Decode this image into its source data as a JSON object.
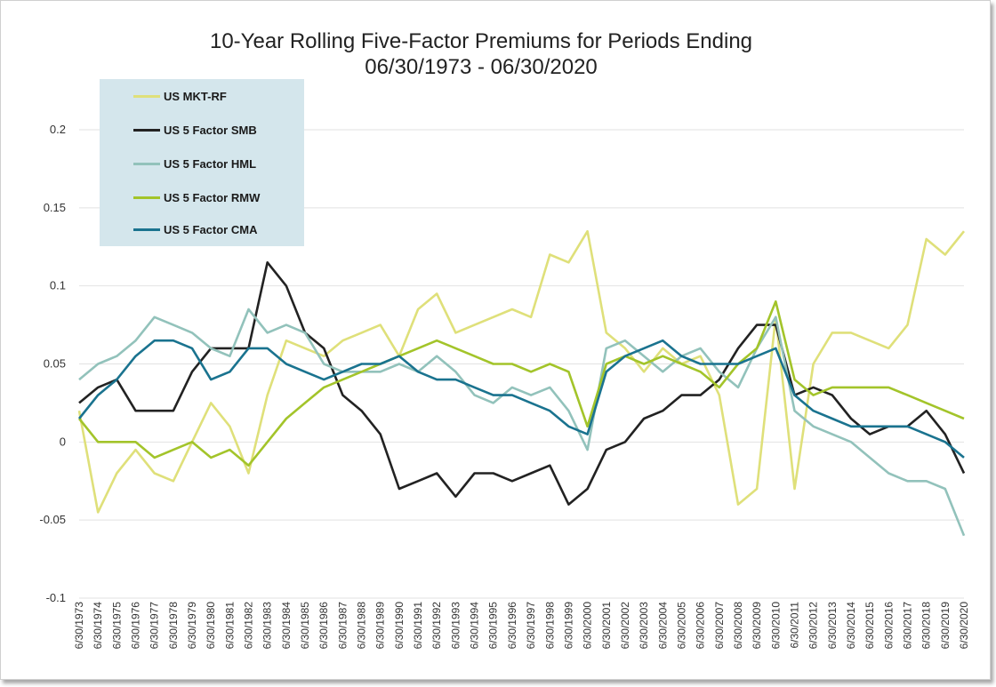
{
  "chart_data": {
    "type": "line",
    "title": "10-Year Rolling Five-Factor Premiums for Periods Ending",
    "subtitle": "06/30/1973 - 06/30/2020",
    "ylim": [
      -0.1,
      0.2
    ],
    "yticks": [
      {
        "value": 0.2,
        "label": "0.2"
      },
      {
        "value": 0.15,
        "label": "0.15"
      },
      {
        "value": 0.1,
        "label": "0.1"
      },
      {
        "value": 0.05,
        "label": "0.05"
      },
      {
        "value": 0,
        "label": "0"
      },
      {
        "value": -0.05,
        "label": "-0.05"
      },
      {
        "value": -0.1,
        "label": "-0.1"
      }
    ],
    "grid": "horizontal",
    "legend_position": "top-left",
    "categories": [
      "6/30/1973",
      "6/30/1974",
      "6/30/1975",
      "6/30/1976",
      "6/30/1977",
      "6/30/1978",
      "6/30/1979",
      "6/30/1980",
      "6/30/1981",
      "6/30/1982",
      "6/30/1983",
      "6/30/1984",
      "6/30/1985",
      "6/30/1986",
      "6/30/1987",
      "6/30/1988",
      "6/30/1989",
      "6/30/1990",
      "6/30/1991",
      "6/30/1992",
      "6/30/1993",
      "6/30/1994",
      "6/30/1995",
      "6/30/1996",
      "6/30/1997",
      "6/30/1998",
      "6/30/1999",
      "6/30/2000",
      "6/30/2001",
      "6/30/2002",
      "6/30/2003",
      "6/30/2004",
      "6/30/2005",
      "6/30/2006",
      "6/30/2007",
      "6/30/2008",
      "6/30/2009",
      "6/30/2010",
      "6/30/2011",
      "6/30/2012",
      "6/30/2013",
      "6/30/2014",
      "6/30/2015",
      "6/30/2016",
      "6/30/2017",
      "6/30/2018",
      "6/30/2019",
      "6/30/2020"
    ],
    "series": [
      {
        "name": "US MKT-RF",
        "color": "#dfe07a",
        "values": [
          0.02,
          -0.045,
          -0.02,
          -0.005,
          -0.02,
          -0.025,
          0.0,
          0.025,
          0.01,
          -0.02,
          0.03,
          0.065,
          0.06,
          0.055,
          0.065,
          0.07,
          0.075,
          0.055,
          0.085,
          0.095,
          0.07,
          0.075,
          0.08,
          0.085,
          0.08,
          0.12,
          0.115,
          0.135,
          0.07,
          0.06,
          0.045,
          0.06,
          0.05,
          0.055,
          0.03,
          -0.04,
          -0.03,
          0.08,
          -0.03,
          0.05,
          0.07,
          0.07,
          0.065,
          0.06,
          0.075,
          0.13,
          0.12,
          0.135
        ]
      },
      {
        "name": "US 5 Factor SMB",
        "color": "#222222",
        "values": [
          0.025,
          0.035,
          0.04,
          0.02,
          0.02,
          0.02,
          0.045,
          0.06,
          0.06,
          0.06,
          0.115,
          0.1,
          0.07,
          0.06,
          0.03,
          0.02,
          0.005,
          -0.03,
          -0.025,
          -0.02,
          -0.035,
          -0.02,
          -0.02,
          -0.025,
          -0.02,
          -0.015,
          -0.04,
          -0.03,
          -0.005,
          0.0,
          0.015,
          0.02,
          0.03,
          0.03,
          0.04,
          0.06,
          0.075,
          0.075,
          0.03,
          0.035,
          0.03,
          0.015,
          0.005,
          0.01,
          0.01,
          0.02,
          0.005,
          -0.02
        ]
      },
      {
        "name": "US 5 Factor HML",
        "color": "#92c2bb",
        "values": [
          0.04,
          0.05,
          0.055,
          0.065,
          0.08,
          0.075,
          0.07,
          0.06,
          0.055,
          0.085,
          0.07,
          0.075,
          0.07,
          0.05,
          0.045,
          0.045,
          0.045,
          0.05,
          0.045,
          0.055,
          0.045,
          0.03,
          0.025,
          0.035,
          0.03,
          0.035,
          0.02,
          -0.005,
          0.06,
          0.065,
          0.055,
          0.045,
          0.055,
          0.06,
          0.045,
          0.035,
          0.06,
          0.08,
          0.02,
          0.01,
          0.005,
          0.0,
          -0.01,
          -0.02,
          -0.025,
          -0.025,
          -0.03,
          -0.06
        ]
      },
      {
        "name": "US 5 Factor RMW",
        "color": "#a3c42a",
        "values": [
          0.015,
          0.0,
          0.0,
          0.0,
          -0.01,
          -0.005,
          0.0,
          -0.01,
          -0.005,
          -0.015,
          0.0,
          0.015,
          0.025,
          0.035,
          0.04,
          0.045,
          0.05,
          0.055,
          0.06,
          0.065,
          0.06,
          0.055,
          0.05,
          0.05,
          0.045,
          0.05,
          0.045,
          0.01,
          0.05,
          0.055,
          0.05,
          0.055,
          0.05,
          0.045,
          0.035,
          0.05,
          0.06,
          0.09,
          0.04,
          0.03,
          0.035,
          0.035,
          0.035,
          0.035,
          0.03,
          0.025,
          0.02,
          0.015
        ]
      },
      {
        "name": "US 5 Factor CMA",
        "color": "#1a738f",
        "values": [
          0.015,
          0.03,
          0.04,
          0.055,
          0.065,
          0.065,
          0.06,
          0.04,
          0.045,
          0.06,
          0.06,
          0.05,
          0.045,
          0.04,
          0.045,
          0.05,
          0.05,
          0.055,
          0.045,
          0.04,
          0.04,
          0.035,
          0.03,
          0.03,
          0.025,
          0.02,
          0.01,
          0.005,
          0.045,
          0.055,
          0.06,
          0.065,
          0.055,
          0.05,
          0.05,
          0.05,
          0.055,
          0.06,
          0.03,
          0.02,
          0.015,
          0.01,
          0.01,
          0.01,
          0.01,
          0.005,
          0.0,
          -0.01
        ]
      }
    ]
  }
}
